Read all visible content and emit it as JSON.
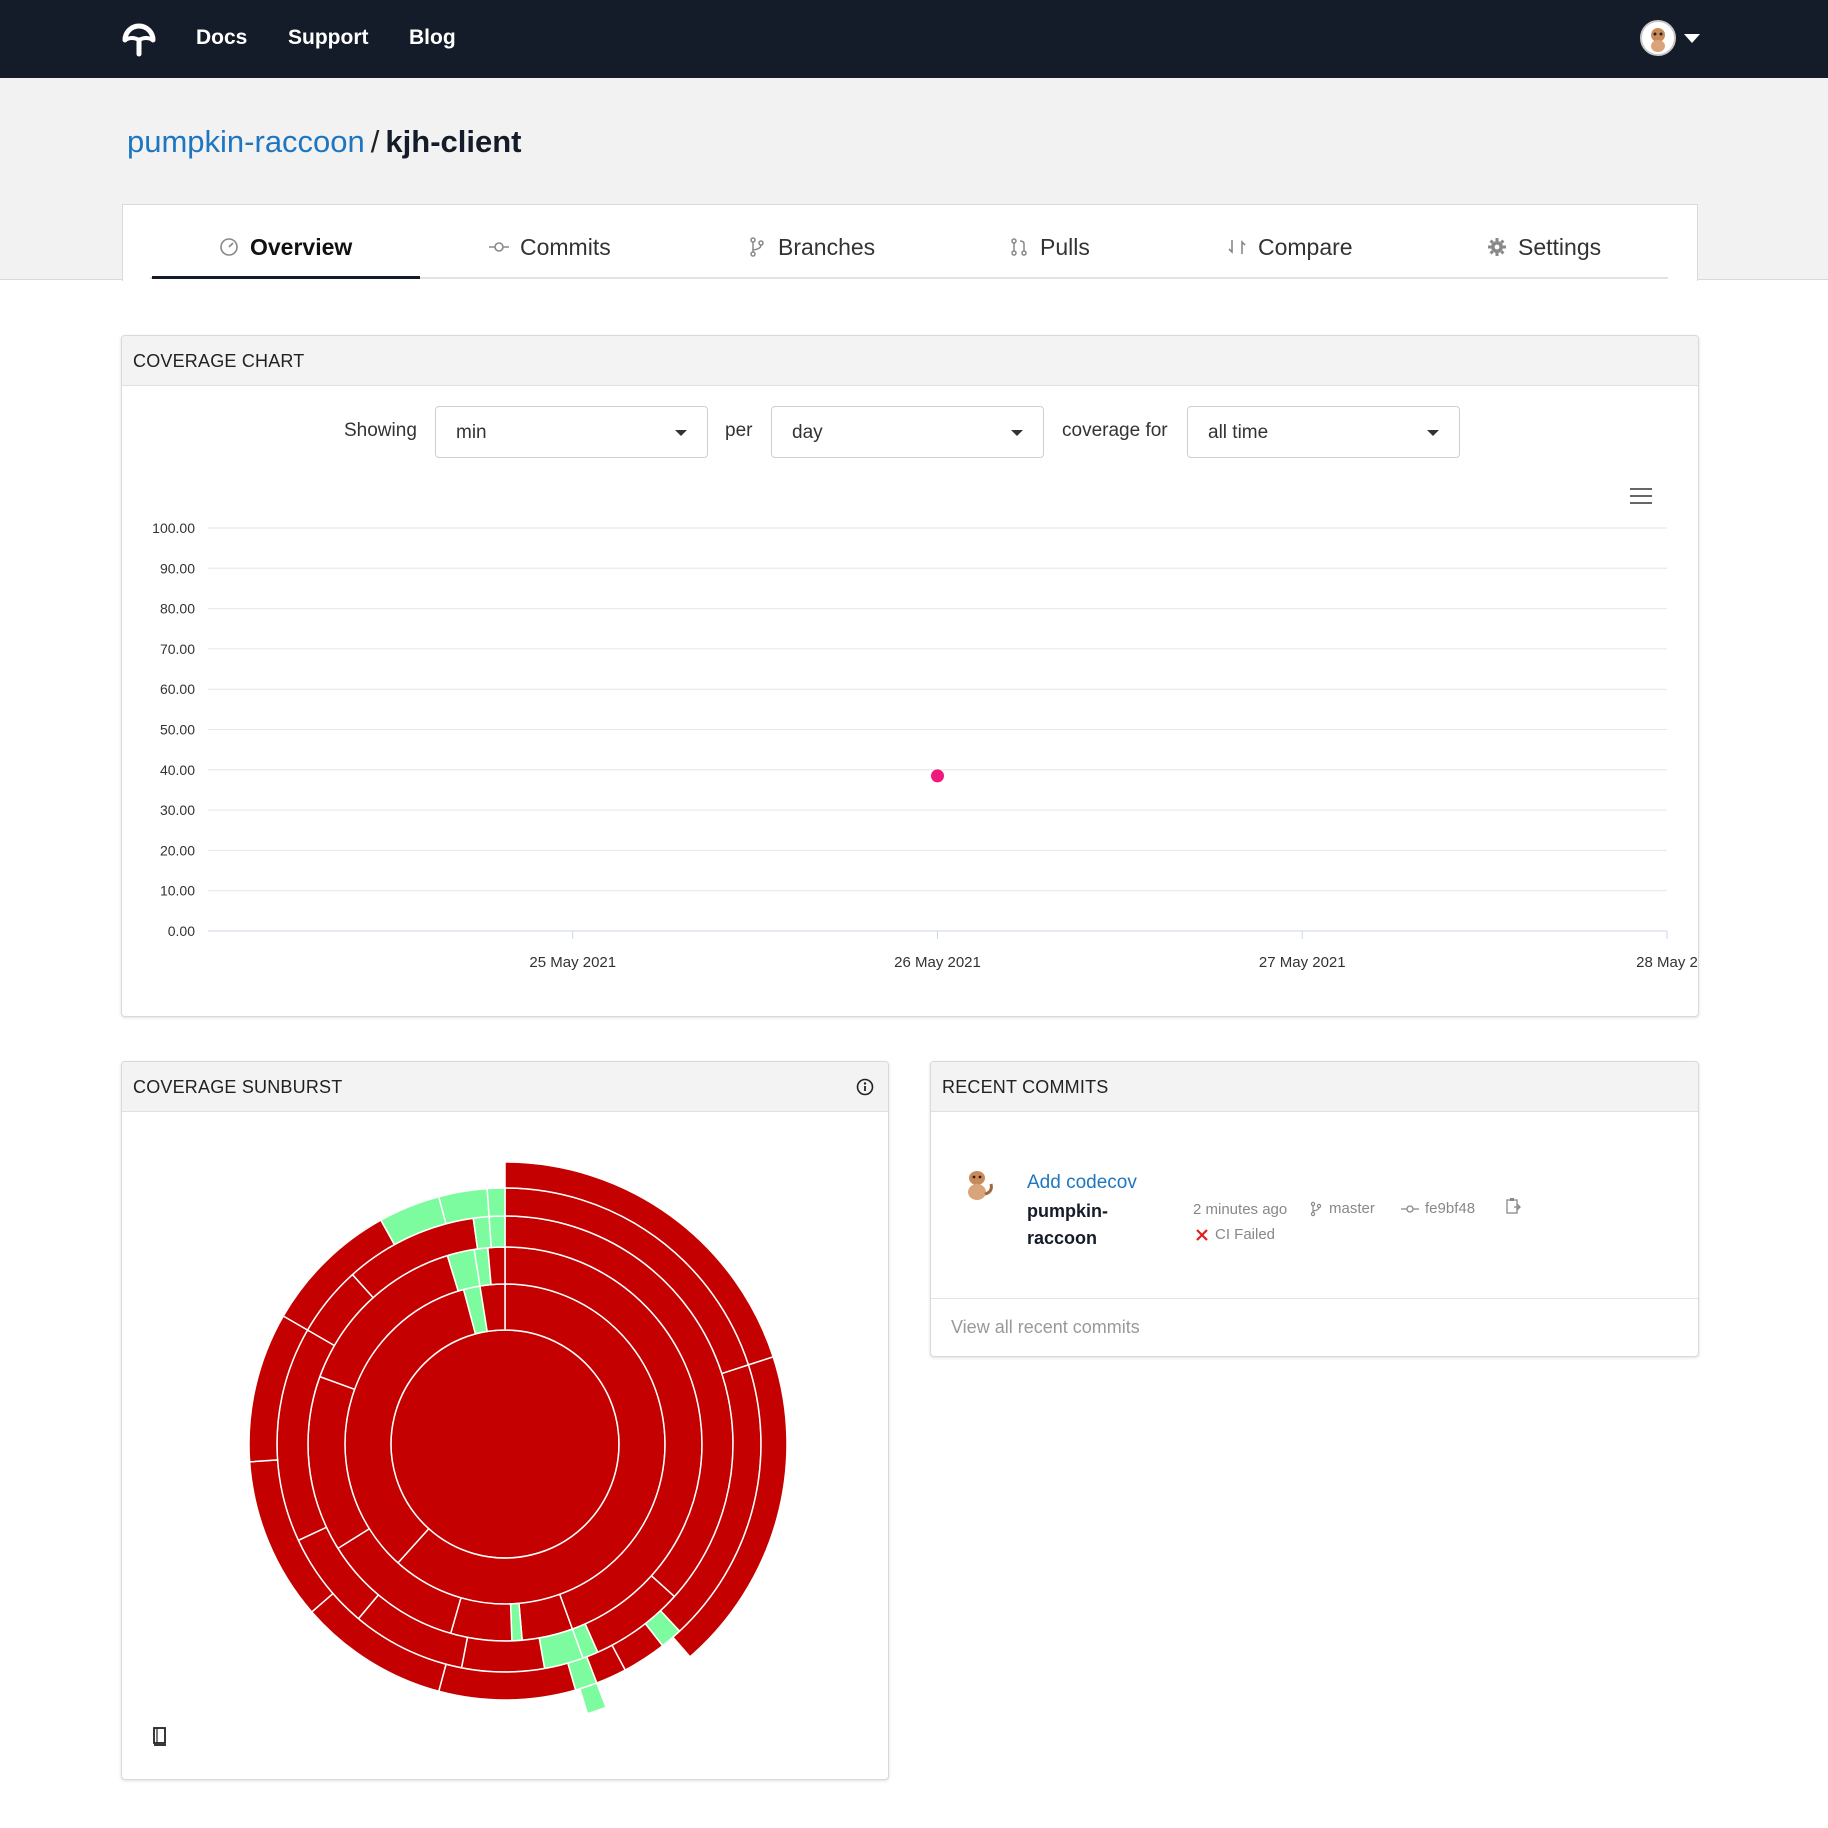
{
  "nav": {
    "links": [
      "Docs",
      "Support",
      "Blog"
    ]
  },
  "breadcrumb": {
    "owner": "pumpkin-raccoon",
    "separator": "/",
    "repo": "kjh-client"
  },
  "tabs": [
    {
      "label": "Overview",
      "icon": "gauge-icon",
      "active": true
    },
    {
      "label": "Commits",
      "icon": "commit-icon"
    },
    {
      "label": "Branches",
      "icon": "branch-icon"
    },
    {
      "label": "Pulls",
      "icon": "pull-request-icon"
    },
    {
      "label": "Compare",
      "icon": "compare-icon"
    },
    {
      "label": "Settings",
      "icon": "gear-icon"
    }
  ],
  "coverage_chart": {
    "title": "COVERAGE CHART",
    "controls": {
      "showing_label": "Showing",
      "showing_value": "min",
      "per_label": "per",
      "per_value": "day",
      "coverage_for_label": "coverage for",
      "coverage_for_value": "all time"
    }
  },
  "chart_data": {
    "type": "scatter",
    "y_ticks": [
      "100.00",
      "90.00",
      "80.00",
      "70.00",
      "60.00",
      "50.00",
      "40.00",
      "30.00",
      "20.00",
      "10.00",
      "0.00"
    ],
    "x_ticks": [
      "25 May 2021",
      "26 May 2021",
      "27 May 2021",
      "28 May 2"
    ],
    "ylim": [
      0,
      100
    ],
    "xlim": [
      "2021-05-24",
      "2021-05-28"
    ],
    "grid": true,
    "point_color": "#f0197d",
    "points": [
      {
        "x": "2021-05-26",
        "y": 38.5
      }
    ]
  },
  "sunburst": {
    "title": "COVERAGE SUNBURST",
    "colors": {
      "uncovered": "#c40000",
      "covered": "#7dfc9f"
    }
  },
  "recent_commits": {
    "title": "RECENT COMMITS",
    "items": [
      {
        "message": "Add codecov",
        "author": "pumpkin-raccoon",
        "time": "2 minutes ago",
        "branch": "master",
        "sha": "fe9bf48",
        "ci_status": "CI Failed"
      }
    ],
    "view_all": "View all recent commits"
  }
}
